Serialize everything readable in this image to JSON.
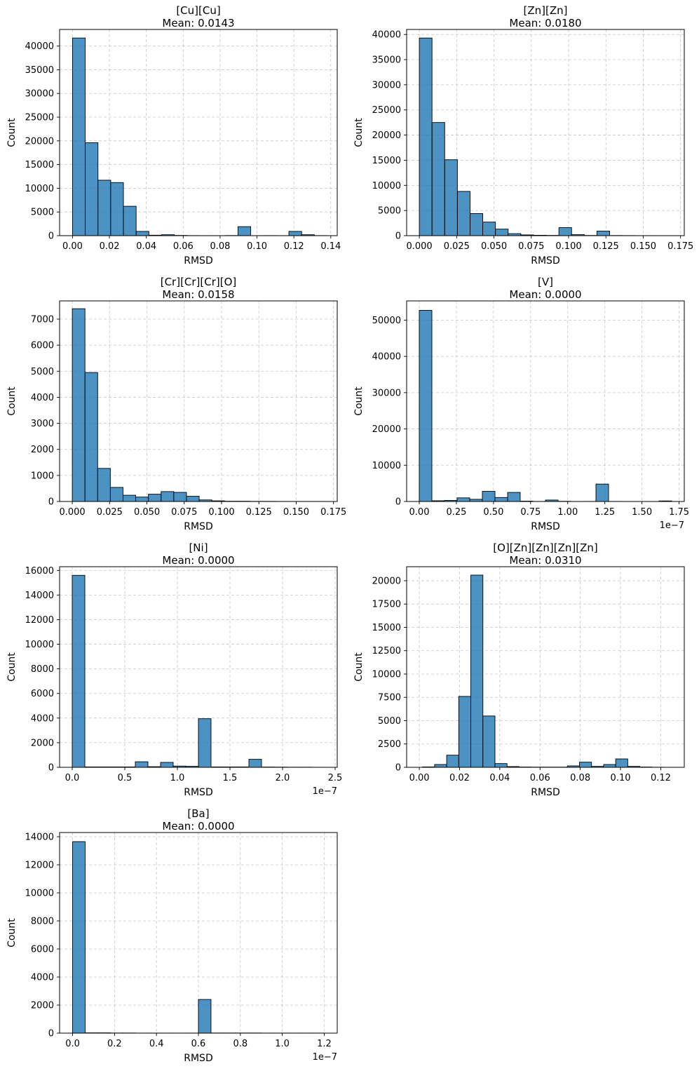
{
  "chart_data": [
    {
      "type": "bar",
      "title": "[Cu][Cu]",
      "subtitle": "Mean: 0.0143",
      "xlabel": "RMSD",
      "ylabel": "Count",
      "xlim": [
        -0.007,
        0.1435
      ],
      "ylim": [
        0,
        43500
      ],
      "xticks": [
        0,
        0.02,
        0.04,
        0.06,
        0.08,
        0.1,
        0.12,
        0.14
      ],
      "xticklabels": [
        "0.00",
        "0.02",
        "0.04",
        "0.06",
        "0.08",
        "0.10",
        "0.12",
        "0.14"
      ],
      "yticks": [
        0,
        5000,
        10000,
        15000,
        20000,
        25000,
        30000,
        35000,
        40000
      ],
      "yticklabels": [
        "0",
        "5000",
        "10000",
        "15000",
        "20000",
        "25000",
        "30000",
        "35000",
        "40000"
      ],
      "offset_label": "",
      "bin_start": 0,
      "bin_width": 0.0069,
      "counts": [
        41700,
        19600,
        11700,
        11200,
        6200,
        900,
        100,
        200,
        50,
        20,
        10,
        10,
        30,
        1900,
        10,
        20,
        10,
        900,
        200,
        20
      ]
    },
    {
      "type": "bar",
      "title": "[Zn][Zn]",
      "subtitle": "Mean: 0.0180",
      "xlabel": "RMSD",
      "ylabel": "Count",
      "xlim": [
        -0.0085,
        0.1775
      ],
      "ylim": [
        0,
        41000
      ],
      "xticks": [
        0,
        0.025,
        0.05,
        0.075,
        0.1,
        0.125,
        0.15,
        0.175
      ],
      "xticklabels": [
        "0.000",
        "0.025",
        "0.050",
        "0.075",
        "0.100",
        "0.125",
        "0.150",
        "0.175"
      ],
      "yticks": [
        0,
        5000,
        10000,
        15000,
        20000,
        25000,
        30000,
        35000,
        40000
      ],
      "yticklabels": [
        "0",
        "5000",
        "10000",
        "15000",
        "20000",
        "25000",
        "30000",
        "35000",
        "40000"
      ],
      "offset_label": "",
      "bin_start": 0,
      "bin_width": 0.0085,
      "counts": [
        39300,
        22500,
        15100,
        8800,
        4400,
        2700,
        1300,
        400,
        150,
        80,
        50,
        1600,
        200,
        40,
        900,
        30,
        20,
        10,
        10,
        5
      ]
    },
    {
      "type": "bar",
      "title": "[Cr][Cr][Cr][O]",
      "subtitle": "Mean: 0.0158",
      "xlabel": "RMSD",
      "ylabel": "Count",
      "xlim": [
        -0.0085,
        0.1775
      ],
      "ylim": [
        0,
        7700
      ],
      "xticks": [
        0,
        0.025,
        0.05,
        0.075,
        0.1,
        0.125,
        0.15,
        0.175
      ],
      "xticklabels": [
        "0.000",
        "0.025",
        "0.050",
        "0.075",
        "0.100",
        "0.125",
        "0.150",
        "0.175"
      ],
      "yticks": [
        0,
        1000,
        2000,
        3000,
        4000,
        5000,
        6000,
        7000
      ],
      "yticklabels": [
        "0",
        "1000",
        "2000",
        "3000",
        "4000",
        "5000",
        "6000",
        "7000"
      ],
      "offset_label": "",
      "bin_start": 0,
      "bin_width": 0.0085,
      "counts": [
        7400,
        4950,
        1270,
        540,
        240,
        170,
        280,
        380,
        350,
        200,
        60,
        25,
        10,
        10,
        5,
        5,
        3,
        2,
        2,
        2
      ]
    },
    {
      "type": "bar",
      "title": "[V]",
      "subtitle": "Mean: 0.0000",
      "xlabel": "RMSD",
      "ylabel": "Count",
      "xlim": [
        -0.085,
        1.785
      ],
      "ylim": [
        0,
        55300
      ],
      "xticks": [
        0,
        0.25,
        0.5,
        0.75,
        1.0,
        1.25,
        1.5,
        1.75
      ],
      "xticklabels": [
        "0.00",
        "0.25",
        "0.50",
        "0.75",
        "1.00",
        "1.25",
        "1.50",
        "1.75"
      ],
      "yticks": [
        0,
        10000,
        20000,
        30000,
        40000,
        50000
      ],
      "yticklabels": [
        "0",
        "10000",
        "20000",
        "30000",
        "40000",
        "50000"
      ],
      "offset_label": "1e−7",
      "bin_start": 0,
      "bin_width": 0.085,
      "counts": [
        52700,
        200,
        300,
        1000,
        600,
        2800,
        1100,
        2500,
        100,
        20,
        400,
        50,
        10,
        20,
        4800,
        20,
        10,
        10,
        10,
        150
      ]
    },
    {
      "type": "bar",
      "title": "[Ni]",
      "subtitle": "Mean: 0.0000",
      "xlabel": "RMSD",
      "ylabel": "Count",
      "xlim": [
        -0.12,
        2.52
      ],
      "ylim": [
        0,
        16300
      ],
      "xticks": [
        0,
        0.5,
        1.0,
        1.5,
        2.0,
        2.5
      ],
      "xticklabels": [
        "0.0",
        "0.5",
        "1.0",
        "1.5",
        "2.0",
        "2.5"
      ],
      "yticks": [
        0,
        2000,
        4000,
        6000,
        8000,
        10000,
        12000,
        14000,
        16000
      ],
      "yticklabels": [
        "0",
        "2000",
        "4000",
        "6000",
        "8000",
        "10000",
        "12000",
        "14000",
        "16000"
      ],
      "offset_label": "1e−7",
      "bin_start": 0,
      "bin_width": 0.12,
      "counts": [
        15600,
        30,
        30,
        30,
        30,
        450,
        50,
        400,
        100,
        80,
        3950,
        30,
        30,
        30,
        650,
        20,
        15,
        10,
        10,
        5
      ]
    },
    {
      "type": "bar",
      "title": "[O][Zn][Zn][Zn][Zn]",
      "subtitle": "Mean: 0.0310",
      "xlabel": "RMSD",
      "ylabel": "Count",
      "xlim": [
        -0.0063,
        0.1317
      ],
      "ylim": [
        0,
        21500
      ],
      "xticks": [
        0,
        0.02,
        0.04,
        0.06,
        0.08,
        0.1,
        0.12
      ],
      "xticklabels": [
        "0.00",
        "0.02",
        "0.04",
        "0.06",
        "0.08",
        "0.10",
        "0.12"
      ],
      "yticks": [
        0,
        2500,
        5000,
        7500,
        10000,
        12500,
        15000,
        17500,
        20000
      ],
      "yticklabels": [
        "0",
        "2500",
        "5000",
        "7500",
        "10000",
        "12500",
        "15000",
        "17500",
        "20000"
      ],
      "offset_label": "",
      "bin_start": 0.0016,
      "bin_width": 0.006,
      "counts": [
        40,
        300,
        1300,
        7600,
        20600,
        5500,
        400,
        80,
        30,
        20,
        20,
        20,
        150,
        550,
        100,
        300,
        900,
        100,
        30,
        10
      ]
    },
    {
      "type": "bar",
      "title": "[Ba]",
      "subtitle": "Mean: 0.0000",
      "xlabel": "RMSD",
      "ylabel": "Count",
      "xlim": [
        -0.062,
        1.262
      ],
      "ylim": [
        0,
        14300
      ],
      "xticks": [
        0,
        0.2,
        0.4,
        0.6,
        0.8,
        1.0,
        1.2
      ],
      "xticklabels": [
        "0.0",
        "0.2",
        "0.4",
        "0.6",
        "0.8",
        "1.0",
        "1.2"
      ],
      "yticks": [
        0,
        2000,
        4000,
        6000,
        8000,
        10000,
        12000,
        14000
      ],
      "yticklabels": [
        "0",
        "2000",
        "4000",
        "6000",
        "8000",
        "10000",
        "12000",
        "14000"
      ],
      "offset_label": "1e−7",
      "bin_start": 0,
      "bin_width": 0.06,
      "counts": [
        13650,
        20,
        20,
        10,
        10,
        5,
        5,
        5,
        5,
        5,
        2400,
        10,
        10,
        10,
        10,
        5,
        5,
        5,
        5,
        5
      ]
    }
  ]
}
